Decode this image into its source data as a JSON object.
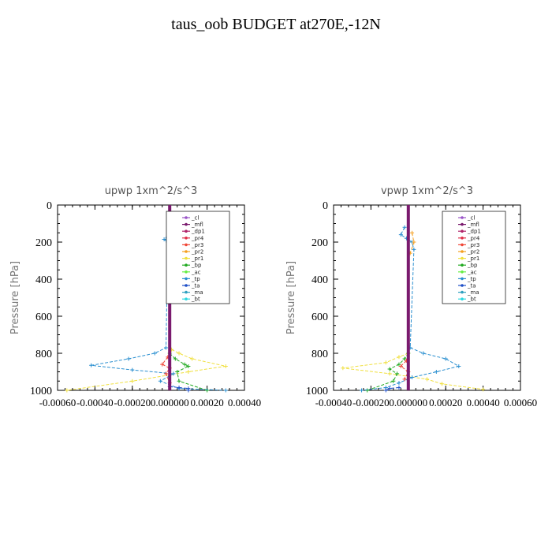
{
  "title": "taus_oob  BUDGET at270E,-12N",
  "legend_items": [
    {
      "label": "_cl",
      "color": "#9a55c8"
    },
    {
      "label": "_mfl",
      "color": "#7a1a6e"
    },
    {
      "label": "_dp1",
      "color": "#b0246a"
    },
    {
      "label": "_pr4",
      "color": "#e0304a"
    },
    {
      "label": "_pr3",
      "color": "#f04838"
    },
    {
      "label": "_pr2",
      "color": "#f5a020"
    },
    {
      "label": "_pr1",
      "color": "#f0e040"
    },
    {
      "label": "_bp",
      "color": "#22aa22"
    },
    {
      "label": "_ac",
      "color": "#66ee44"
    },
    {
      "label": "_tp",
      "color": "#2a8fd0"
    },
    {
      "label": "_ta",
      "color": "#2050c8"
    },
    {
      "label": "_ma",
      "color": "#30a0c0"
    },
    {
      "label": "_bt",
      "color": "#30d8e0"
    }
  ],
  "chart_data": [
    {
      "type": "line",
      "title": "upwp   1xm^2/s^3",
      "ylabel": "Pressure [hPa]",
      "y_ticks": [
        "0",
        "200",
        "400",
        "600",
        "800",
        "1000"
      ],
      "x_ticks": [
        "-0.00060",
        "-0.00040",
        "-0.00020",
        "0.000000",
        "0.00020",
        "0.00040"
      ],
      "xlim": [
        -0.0006,
        0.0004
      ],
      "ylim": [
        1000,
        0
      ],
      "legend_position": "top-right",
      "series": [
        {
          "name": "_pr1",
          "points": [
            [
              1e-05,
              780
            ],
            [
              5e-05,
              800
            ],
            [
              0.00012,
              830
            ],
            [
              0.0003,
              870
            ],
            [
              0.0001,
              900
            ],
            [
              -0.0002,
              950
            ],
            [
              -0.00055,
              1000
            ]
          ]
        },
        {
          "name": "_bp",
          "points": [
            [
              0.0,
              800
            ],
            [
              3e-05,
              830
            ],
            [
              8e-05,
              860
            ],
            [
              0.0001,
              870
            ],
            [
              4e-05,
              900
            ],
            [
              5e-05,
              950
            ],
            [
              0.0002,
              1000
            ]
          ]
        },
        {
          "name": "_tp",
          "points": [
            [
              -1e-05,
              170
            ],
            [
              -3e-05,
              185
            ],
            [
              -1e-05,
              200
            ],
            [
              -2e-05,
              770
            ],
            [
              -8e-05,
              800
            ],
            [
              -0.00022,
              830
            ],
            [
              -0.00042,
              865
            ],
            [
              -0.0002,
              890
            ],
            [
              2e-05,
              910
            ],
            [
              -5e-05,
              950
            ],
            [
              5e-05,
              990
            ],
            [
              0.0003,
              1000
            ]
          ]
        },
        {
          "name": "_pr3",
          "points": [
            [
              -1e-05,
              820
            ],
            [
              -4e-05,
              860
            ],
            [
              0.0,
              880
            ],
            [
              -2e-05,
              910
            ],
            [
              0.0,
              960
            ]
          ]
        },
        {
          "name": "_ta",
          "points": [
            [
              0.0,
              980
            ],
            [
              5e-05,
              985
            ],
            [
              0.0001,
              990
            ],
            [
              0.0001,
              1000
            ]
          ]
        },
        {
          "name": "_mfl",
          "points": [
            [
              0.0,
              0
            ],
            [
              0.0,
              1000
            ]
          ]
        }
      ]
    },
    {
      "type": "line",
      "title": "vpwp   1xm^2/s^3",
      "ylabel": "Pressure [hPa]",
      "y_ticks": [
        "0",
        "200",
        "400",
        "600",
        "800",
        "1000"
      ],
      "x_ticks": [
        "-0.00040",
        "-0.00020",
        "0.000000",
        "0.00020",
        "0.00040",
        "0.00060"
      ],
      "xlim": [
        -0.0004,
        0.0006
      ],
      "ylim": [
        1000,
        0
      ],
      "legend_position": "top-right",
      "series": [
        {
          "name": "_pr1",
          "points": [
            [
              0.0,
              800
            ],
            [
              -5e-05,
              820
            ],
            [
              -0.00012,
              850
            ],
            [
              -0.00035,
              880
            ],
            [
              -0.0001,
              910
            ],
            [
              0.0001,
              940
            ],
            [
              0.00018,
              965
            ],
            [
              0.0004,
              995
            ]
          ]
        },
        {
          "name": "_bp",
          "points": [
            [
              0.0,
              800
            ],
            [
              -2e-05,
              830
            ],
            [
              -5e-05,
              860
            ],
            [
              -0.0001,
              885
            ],
            [
              -6e-05,
              910
            ],
            [
              -8e-05,
              950
            ],
            [
              -0.00022,
              1000
            ]
          ]
        },
        {
          "name": "_tp",
          "points": [
            [
              -2e-05,
              120
            ],
            [
              -4e-05,
              160
            ],
            [
              -1e-05,
              180
            ],
            [
              2e-05,
              200
            ],
            [
              3e-05,
              240
            ],
            [
              1e-05,
              770
            ],
            [
              8e-05,
              800
            ],
            [
              0.0002,
              830
            ],
            [
              0.00027,
              870
            ],
            [
              0.00015,
              900
            ],
            [
              2e-05,
              930
            ],
            [
              -5e-05,
              960
            ],
            [
              -0.00012,
              985
            ],
            [
              -0.00025,
              1000
            ]
          ]
        },
        {
          "name": "_pr2",
          "points": [
            [
              2e-05,
              150
            ],
            [
              3e-05,
              200
            ],
            [
              1e-05,
              260
            ]
          ]
        },
        {
          "name": "_pr3",
          "points": [
            [
              -1e-05,
              840
            ],
            [
              -4e-05,
              870
            ],
            [
              0.0,
              900
            ],
            [
              -2e-05,
              940
            ]
          ]
        },
        {
          "name": "_ta",
          "points": [
            [
              -5e-05,
              985
            ],
            [
              -0.0001,
              990
            ],
            [
              -0.00012,
              1000
            ]
          ]
        },
        {
          "name": "_mfl",
          "points": [
            [
              0.0,
              0
            ],
            [
              0.0,
              1000
            ]
          ]
        }
      ]
    }
  ]
}
